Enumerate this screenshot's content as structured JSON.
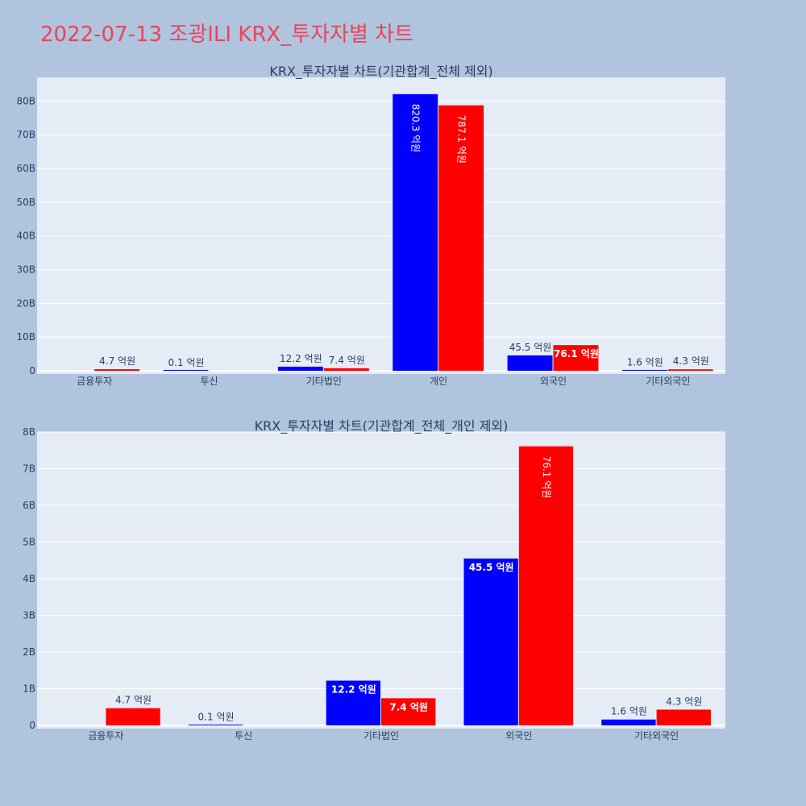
{
  "title": "2022-07-13 조광ILI KRX_투자자별 차트",
  "colors": {
    "buy": "#0000ff",
    "sell": "#ff0000",
    "plot_bg": "#e5ecf6",
    "page_bg": "#b0c4de",
    "title": "#e8455a"
  },
  "chart_data": [
    {
      "type": "bar",
      "title": "KRX_투자자별 차트(기관합계_전체 제외)",
      "categories": [
        "금융투자",
        "투신",
        "기타법인",
        "개인",
        "외국인",
        "기타외국인"
      ],
      "ylim": [
        0,
        87
      ],
      "y_ticks": [
        0,
        10,
        20,
        30,
        40,
        50,
        60,
        70,
        80
      ],
      "y_tick_labels": [
        "0",
        "10B",
        "20B",
        "30B",
        "40B",
        "50B",
        "60B",
        "70B",
        "80B"
      ],
      "grid": true,
      "series": [
        {
          "color": "#0000ff",
          "values": [
            0,
            0.01,
            1.22,
            82.03,
            4.55,
            0.16
          ],
          "labels": [
            "",
            "0.1 억원",
            "12.2 억원",
            "820.3 억원",
            "45.5 억원",
            "1.6 억원"
          ]
        },
        {
          "color": "#ff0000",
          "values": [
            0.47,
            0,
            0.74,
            78.71,
            7.61,
            0.43
          ],
          "labels": [
            "4.7 억원",
            "",
            "7.4 억원",
            "787.1 억원",
            "76.1 억원",
            "4.3 억원"
          ]
        }
      ]
    },
    {
      "type": "bar",
      "title": "KRX_투자자별 차트(기관합계_전체_개인 제외)",
      "categories": [
        "금융투자",
        "투신",
        "기타법인",
        "외국인",
        "기타외국인"
      ],
      "ylim": [
        0,
        8
      ],
      "y_ticks": [
        0,
        1,
        2,
        3,
        4,
        5,
        6,
        7,
        8
      ],
      "y_tick_labels": [
        "0",
        "1B",
        "2B",
        "3B",
        "4B",
        "5B",
        "6B",
        "7B",
        "8B"
      ],
      "grid": true,
      "series": [
        {
          "color": "#0000ff",
          "values": [
            0,
            0.01,
            1.22,
            4.55,
            0.16
          ],
          "labels": [
            "",
            "0.1 억원",
            "12.2 억원",
            "45.5 억원",
            "1.6 억원"
          ]
        },
        {
          "color": "#ff0000",
          "values": [
            0.47,
            0,
            0.74,
            7.61,
            0.43
          ],
          "labels": [
            "4.7 억원",
            "",
            "7.4 억원",
            "76.1 억원",
            "4.3 억원"
          ]
        }
      ]
    }
  ]
}
